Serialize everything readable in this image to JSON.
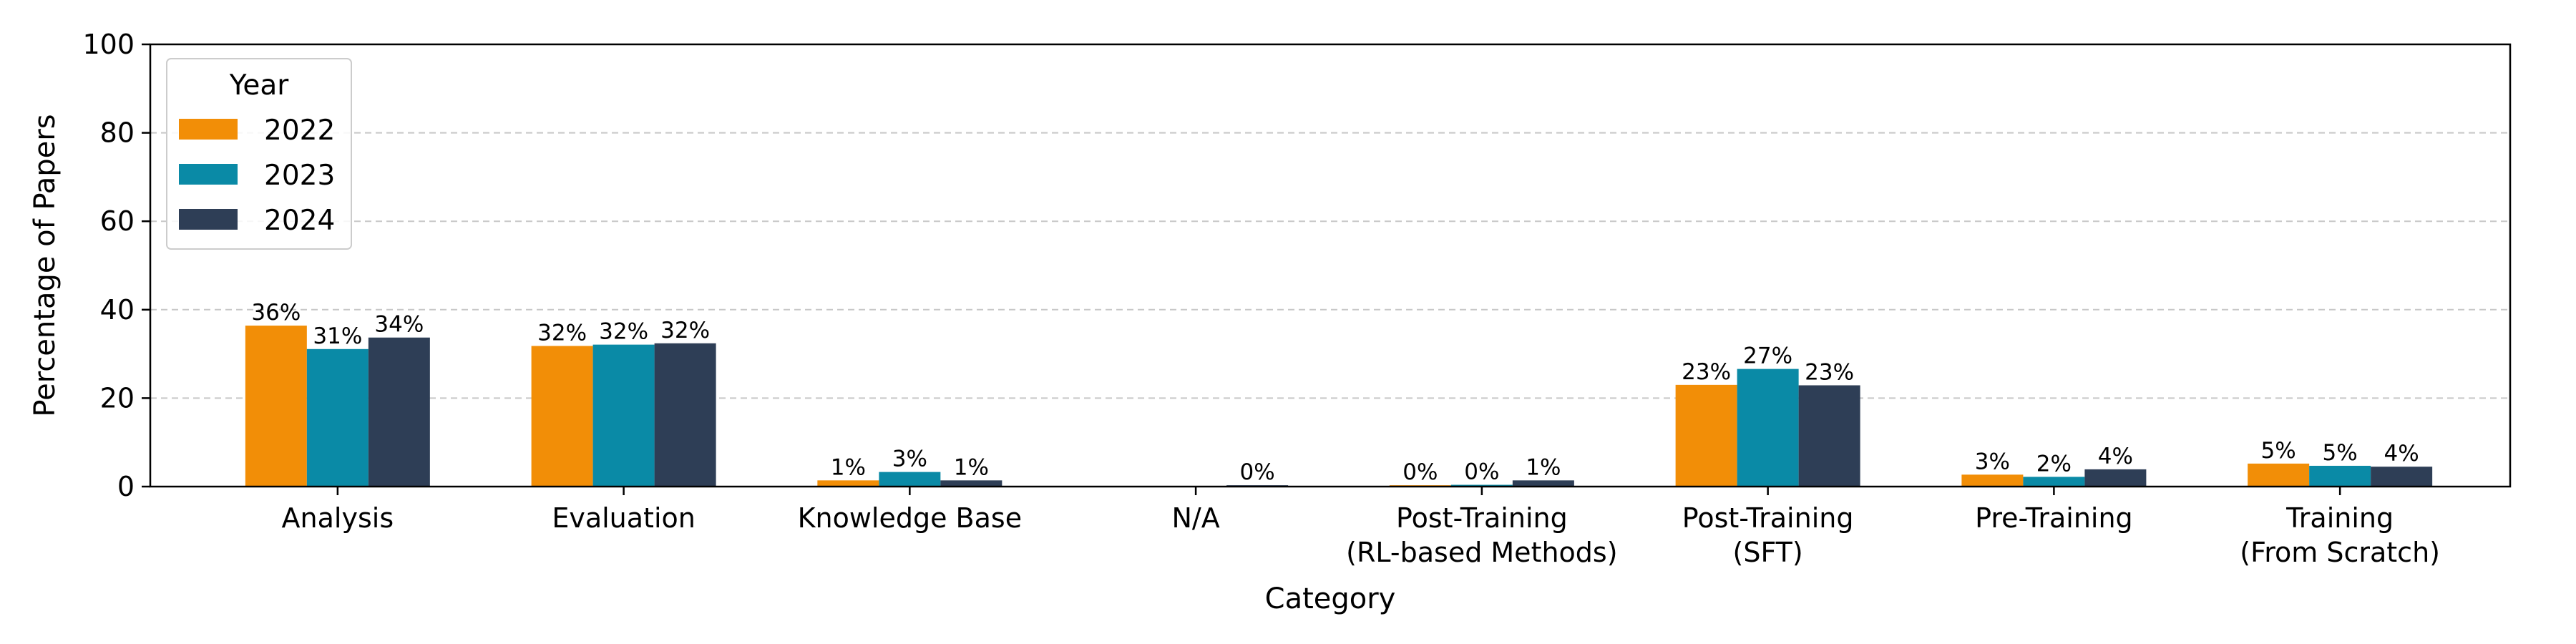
{
  "chart_data": {
    "type": "bar",
    "xlabel": "Category",
    "ylabel": "Percentage of Papers",
    "ylim": [
      0,
      100
    ],
    "yticks": [
      0,
      20,
      40,
      60,
      80,
      100
    ],
    "grid": "y-dashed",
    "legend": {
      "title": "Year",
      "placement": "top-left"
    },
    "categories": [
      [
        "Analysis"
      ],
      [
        "Evaluation"
      ],
      [
        "Knowledge Base"
      ],
      [
        "N/A"
      ],
      [
        "Post-Training",
        "(RL-based Methods)"
      ],
      [
        "Post-Training",
        "(SFT)"
      ],
      [
        "Pre-Training"
      ],
      [
        "Training",
        "(From Scratch)"
      ]
    ],
    "series": [
      {
        "name": "2022",
        "color": "#F28E07",
        "values": [
          36.4,
          31.8,
          1.4,
          0,
          0.3,
          23.0,
          2.7,
          5.2
        ],
        "labels": [
          "36%",
          "32%",
          "1%",
          "",
          "0%",
          "23%",
          "3%",
          "5%"
        ]
      },
      {
        "name": "2023",
        "color": "#0A8AA6",
        "values": [
          31.1,
          32.1,
          3.3,
          0,
          0.4,
          26.6,
          2.2,
          4.7
        ],
        "labels": [
          "31%",
          "32%",
          "3%",
          "",
          "0%",
          "27%",
          "2%",
          "5%"
        ]
      },
      {
        "name": "2024",
        "color": "#2E3E56",
        "values": [
          33.7,
          32.4,
          1.4,
          0.3,
          1.4,
          22.9,
          3.9,
          4.5
        ],
        "labels": [
          "34%",
          "32%",
          "1%",
          "0%",
          "1%",
          "23%",
          "4%",
          "4%"
        ]
      }
    ]
  }
}
